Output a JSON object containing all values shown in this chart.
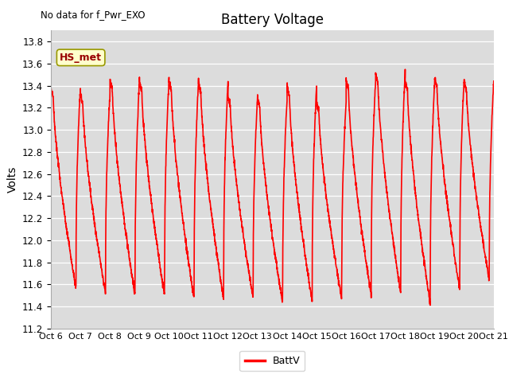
{
  "title": "Battery Voltage",
  "no_data_text": "No data for f_Pwr_EXO",
  "ylabel": "Volts",
  "legend_label": "BattV",
  "legend_color": "#ff0000",
  "line_color": "#ff0000",
  "line_width": 1.2,
  "background_color": "#dcdcdc",
  "ylim": [
    11.2,
    13.9
  ],
  "yticks": [
    11.2,
    11.4,
    11.6,
    11.8,
    12.0,
    12.2,
    12.4,
    12.6,
    12.8,
    13.0,
    13.2,
    13.4,
    13.6,
    13.8
  ],
  "xtick_labels": [
    "Oct 6",
    "Oct 7",
    "Oct 8",
    "Oct 9",
    "Oct 10",
    "Oct 11",
    "Oct 12",
    "Oct 13",
    "Oct 14",
    "Oct 15",
    "Oct 16",
    "Oct 17",
    "Oct 18",
    "Oct 19",
    "Oct 20",
    "Oct 21"
  ],
  "hs_met_label": "HS_met",
  "hs_met_bg": "#ffffcc",
  "hs_met_border": "#999900",
  "hs_met_text_color": "#990000"
}
